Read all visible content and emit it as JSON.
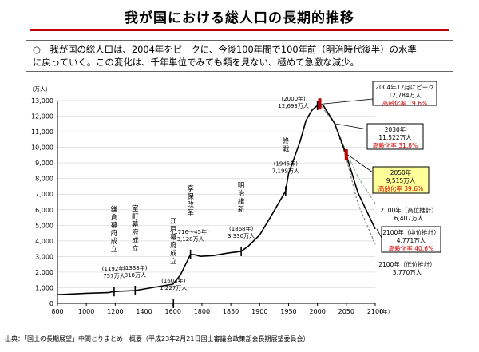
{
  "title": "我が国における総人口の長期的推移",
  "summary": {
    "line1": "○　我が国の総人口は、2004年をピークに、今後100年間で100年前（明治時代後半）の水準",
    "line2": "に戻っていく。この変化は、千年単位でみても類を見ない、極めて急激な減少。"
  },
  "footer": "出典：「国土の長期展望」中間とりまとめ　概要（平成23年2月21日国土審議会政策部会長期展望委員会）",
  "colors": {
    "accent": "#c00000",
    "line": "#000000",
    "high_variant": "#7fa77f",
    "low_variant": "#7f7f7f",
    "aging_rate": "#d00000",
    "box_2050_bg": "#ffff99"
  },
  "chart_data": {
    "type": "line",
    "ylabel": "（万人）",
    "xunit": "（年）",
    "xlim": [
      800,
      2100
    ],
    "ylim": [
      0,
      13000
    ],
    "xticks": [
      "800",
      "1000",
      "1200",
      "1400",
      "1600",
      "1800",
      "1850",
      "1900",
      "1950",
      "2000",
      "2050",
      "2100"
    ],
    "yticks": [
      "0",
      "1,000",
      "2,000",
      "3,000",
      "4,000",
      "5,000",
      "6,000",
      "7,000",
      "8,000",
      "9,000",
      "10,000",
      "11,000",
      "12,000",
      "13,000"
    ],
    "grid": true,
    "series": [
      {
        "name": "総人口",
        "x": [
          800,
          1000,
          1150,
          1192,
          1338,
          1450,
          1600,
          1650,
          1721,
          1750,
          1790,
          1820,
          1846,
          1868,
          1880,
          1900,
          1920,
          1945,
          1950,
          1960,
          1970,
          1980,
          1990,
          2000,
          2004,
          2010,
          2030,
          2050,
          2070,
          2100
        ],
        "y": [
          551,
          644,
          684,
          757,
          818,
          1000,
          1227,
          1800,
          3128,
          3110,
          3010,
          3060,
          3230,
          3330,
          3650,
          4380,
          5600,
          7199,
          8320,
          9340,
          10370,
          11710,
          12360,
          12693,
          12784,
          12700,
          11522,
          9515,
          7100,
          4771
        ]
      },
      {
        "name": "高位推計",
        "x": [
          2004,
          2030,
          2050,
          2070,
          2100
        ],
        "y": [
          12784,
          11522,
          9700,
          8100,
          6407
        ]
      },
      {
        "name": "低位推計",
        "x": [
          2004,
          2030,
          2050,
          2070,
          2100
        ],
        "y": [
          12784,
          11522,
          9300,
          6400,
          3770
        ]
      }
    ],
    "events": [
      {
        "label": "鎌倉幕府成立",
        "x": 1192,
        "date": "(1192年)",
        "value": "757万人"
      },
      {
        "label": "室町幕府成立",
        "x": 1338,
        "date": "(1338年)",
        "value": "818万人"
      },
      {
        "label": "江戸幕府成立",
        "x": 1603,
        "date": "(1603年)",
        "value": "1,227万人"
      },
      {
        "label": "享保改革",
        "x": 1721,
        "date": "(1716～45年)",
        "value": "3,128万人"
      },
      {
        "label": "明治維新",
        "x": 1868,
        "date": "(1868年)",
        "value": "3,330万人"
      },
      {
        "label": "終戦",
        "x": 1945,
        "date": "(1945年)",
        "value": "7,199万人"
      },
      {
        "label": "",
        "x": 2000,
        "date": "(2000年)",
        "value": "12,693万人"
      }
    ],
    "markers": [
      {
        "x": 2004,
        "y": 12784
      },
      {
        "x": 2050,
        "y": 9515
      }
    ],
    "callouts": {
      "peak": {
        "line1": "2004年12月にピーク",
        "line2": "12,784万人",
        "line3": "高齢化率 19.6%"
      },
      "y2030": {
        "line1": "2030年",
        "line2": "11,522万人",
        "line3": "高齢化率 31.8%"
      },
      "y2050": {
        "line1": "2050年",
        "line2": "9,515万人",
        "line3": "高齢化率 39.6%"
      },
      "high": {
        "line1": "2100年（高位推計）",
        "line2": "6,407万人"
      },
      "middle": {
        "line1": "2100年（中位推計）",
        "line2": "4,771万人",
        "line3": "高齢化率 40.6%"
      },
      "low": {
        "line1": "2100年（低位推計）",
        "line2": "3,770万人"
      }
    }
  }
}
